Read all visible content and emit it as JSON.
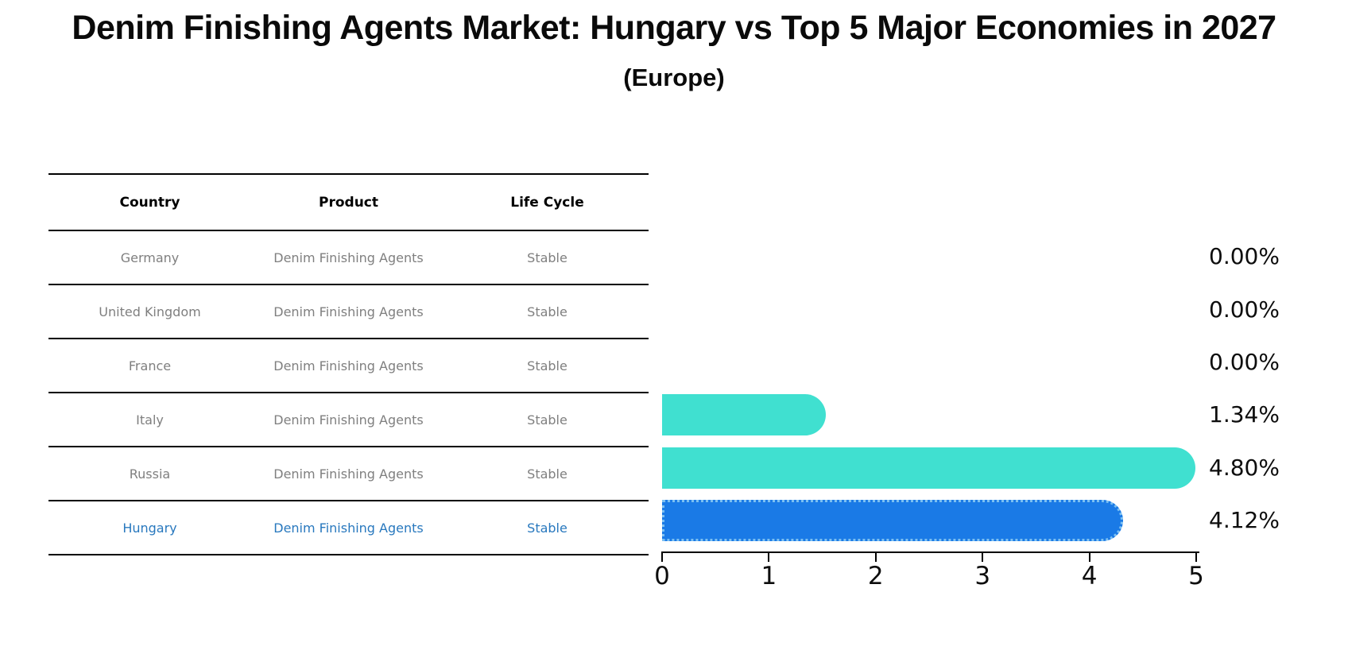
{
  "title": "Denim Finishing Agents Market: Hungary vs Top 5 Major Economies in 2027",
  "subtitle": "(Europe)",
  "table": {
    "headers": [
      "Country",
      "Product",
      "Life Cycle"
    ],
    "rows": [
      {
        "country": "Germany",
        "product": "Denim Finishing Agents",
        "life_cycle": "Stable",
        "highlighted": false
      },
      {
        "country": "United Kingdom",
        "product": "Denim Finishing Agents",
        "life_cycle": "Stable",
        "highlighted": false
      },
      {
        "country": "France",
        "product": "Denim Finishing Agents",
        "life_cycle": "Stable",
        "highlighted": false
      },
      {
        "country": "Italy",
        "product": "Denim Finishing Agents",
        "life_cycle": "Stable",
        "highlighted": false
      },
      {
        "country": "Russia",
        "product": "Denim Finishing Agents",
        "life_cycle": "Stable",
        "highlighted": false
      },
      {
        "country": "Hungary",
        "product": "Denim Finishing Agents",
        "life_cycle": "Stable",
        "highlighted": true
      }
    ]
  },
  "chart_data": {
    "type": "bar",
    "orientation": "horizontal",
    "categories": [
      "Germany",
      "United Kingdom",
      "France",
      "Italy",
      "Russia",
      "Hungary"
    ],
    "values": [
      0.0,
      0.0,
      0.0,
      1.34,
      4.8,
      4.12
    ],
    "labels": [
      "0.00%",
      "0.00%",
      "0.00%",
      "1.34%",
      "4.80%",
      "4.12%"
    ],
    "xlim": [
      0,
      5
    ],
    "xticks": [
      0,
      1,
      2,
      3,
      4,
      5
    ],
    "grid": false,
    "legend": "none",
    "highlight_index": 5,
    "bar_style": {
      "default_color": "#40E0D0",
      "highlight_color": "#1A7AE6",
      "highlight_edge_color": "#7CC0F2",
      "highlight_edge_style": "dotted",
      "rounded_end": "right"
    }
  },
  "colors": {
    "background": "#FFFFFF",
    "text": "#0A0A0A",
    "table_cell_text": "#7F7F7F",
    "highlight_row_text": "#2878BE",
    "axis": "#000000"
  }
}
